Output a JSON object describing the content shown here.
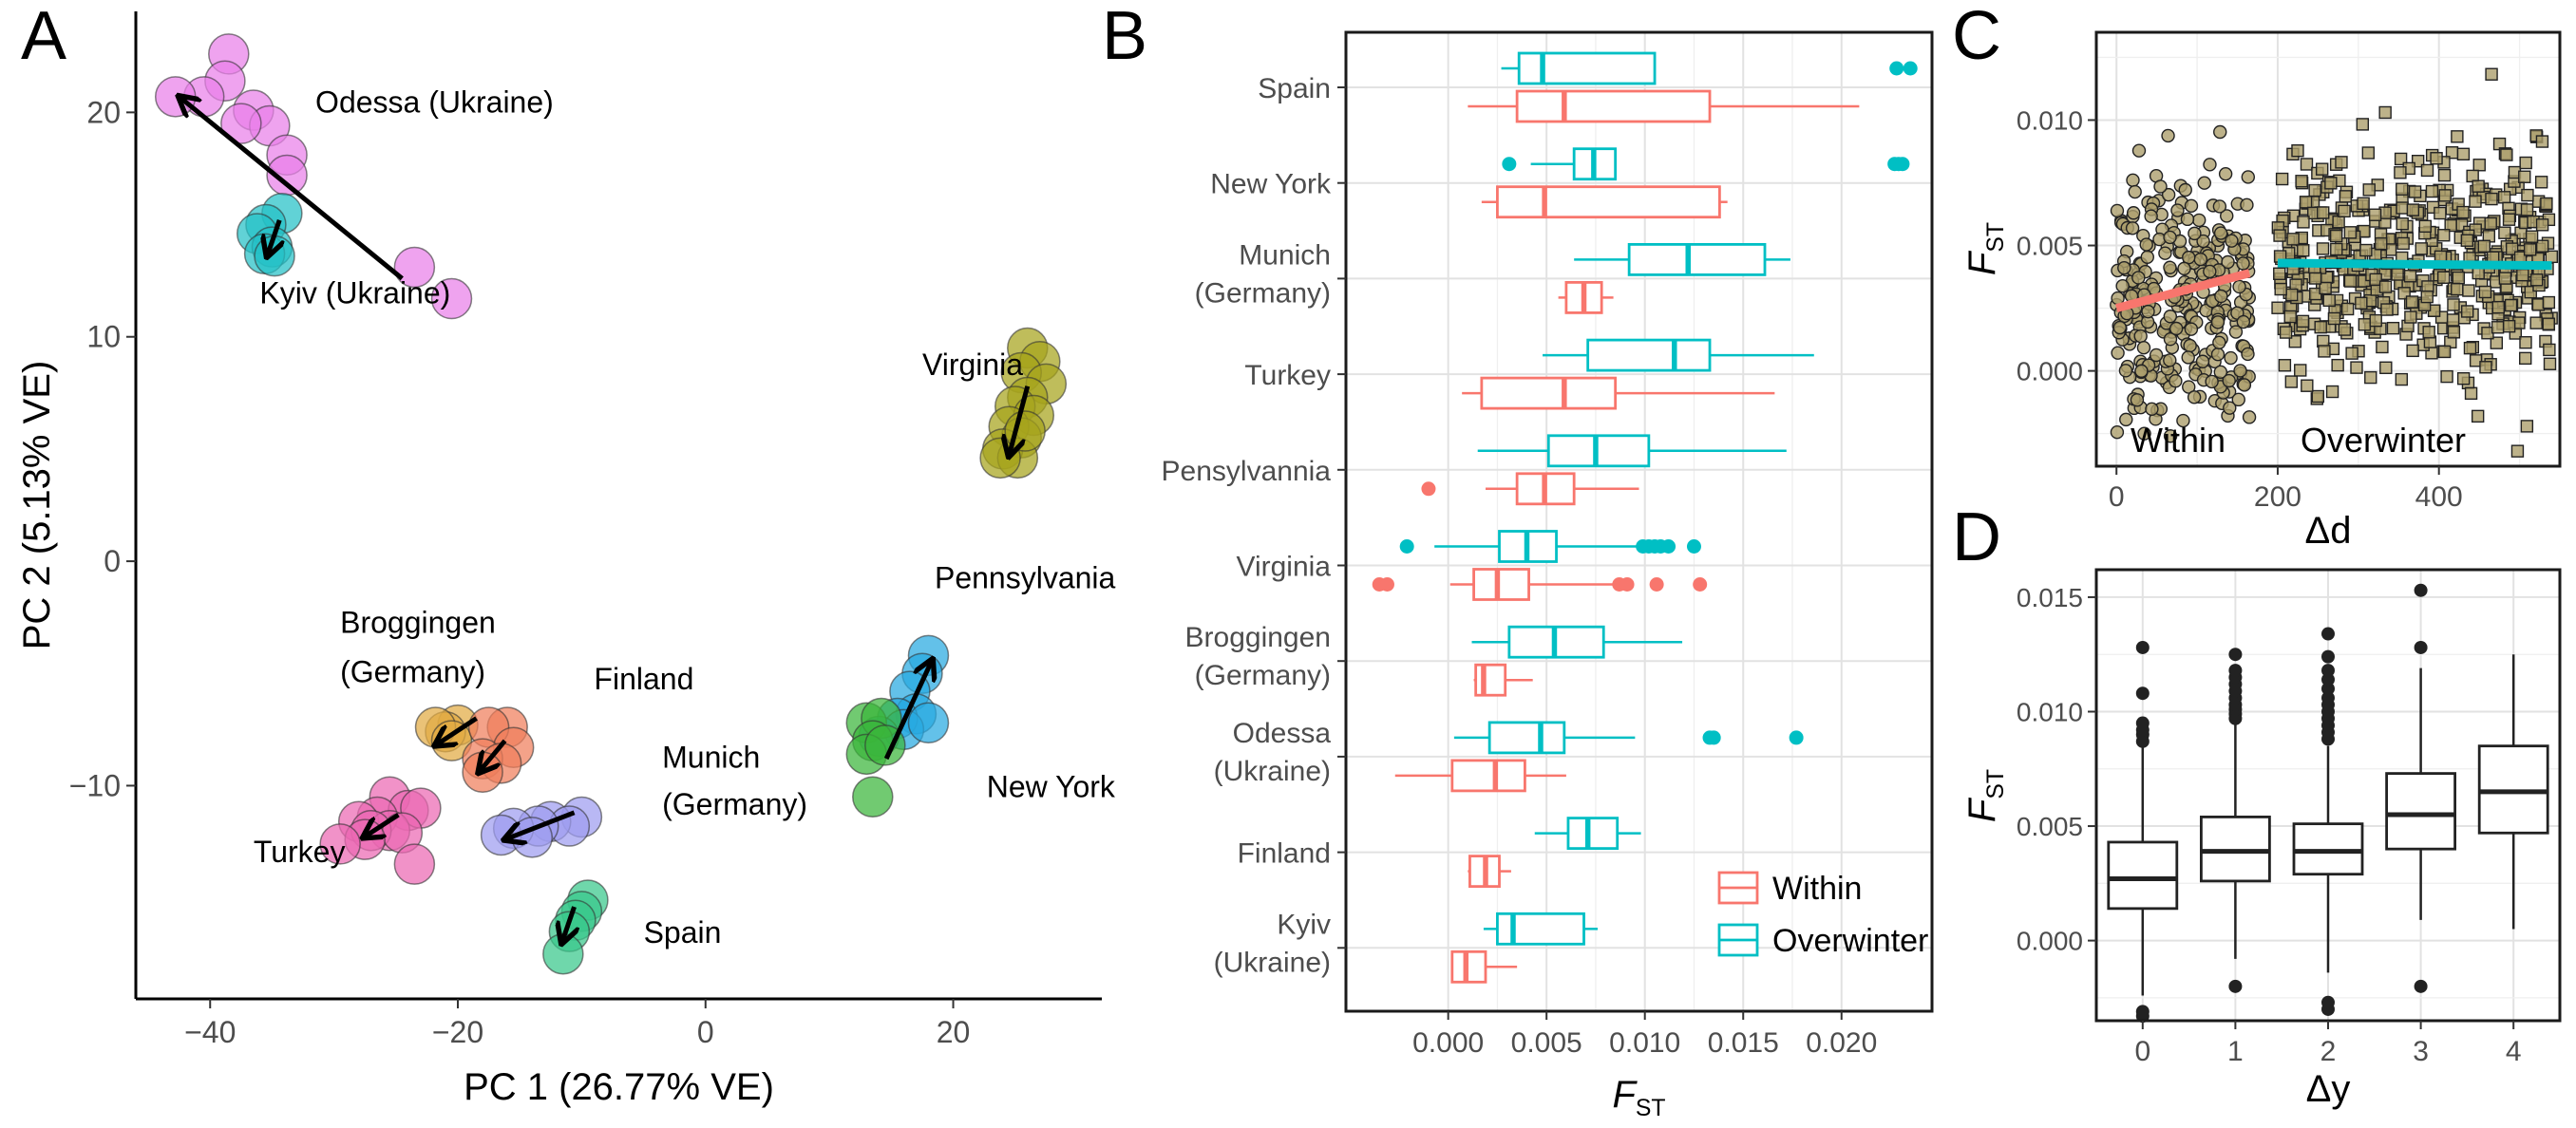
{
  "panels": {
    "A": "A",
    "B": "B",
    "C": "C",
    "D": "D"
  },
  "chart_data": [
    {
      "id": "A",
      "type": "scatter",
      "xlabel": "PC 1 (26.77% VE)",
      "ylabel": "PC 2 (5.13% VE)",
      "xlim": [
        -46,
        32
      ],
      "ylim": [
        -19.5,
        24.5
      ],
      "xticks": [
        -40,
        -20,
        0,
        20
      ],
      "yticks": [
        -10,
        0,
        10,
        20
      ],
      "groups": [
        {
          "name": "Odessa (Ukraine)",
          "color": "#e97fe9",
          "points": [
            [
              -38.5,
              22.6
            ],
            [
              -38.8,
              21.4
            ],
            [
              -40.5,
              20.7
            ],
            [
              -42.8,
              20.7
            ],
            [
              -36.5,
              20.1
            ],
            [
              -35.2,
              19.4
            ],
            [
              -37.5,
              19.5
            ],
            [
              -33.8,
              18.1
            ],
            [
              -33.8,
              17.2
            ],
            [
              -23.5,
              13.1
            ],
            [
              -20.5,
              11.7
            ]
          ],
          "arrow": [
            [
              -24.5,
              12.6
            ],
            [
              -42.5,
              20.7
            ]
          ]
        },
        {
          "name": "Kyiv (Ukraine)",
          "color": "#24c1c6",
          "points": [
            [
              -34.2,
              15.5
            ],
            [
              -35.5,
              15.0
            ],
            [
              -36.2,
              14.6
            ],
            [
              -35.0,
              14.0
            ],
            [
              -35.6,
              13.7
            ],
            [
              -34.8,
              13.6
            ]
          ],
          "arrow": [
            [
              -34.4,
              15.2
            ],
            [
              -35.4,
              13.6
            ]
          ]
        },
        {
          "name": "Virginia",
          "color": "#a6a41c",
          "points": [
            [
              26.0,
              9.5
            ],
            [
              27.0,
              8.9
            ],
            [
              25.5,
              8.4
            ],
            [
              27.5,
              7.9
            ],
            [
              26.0,
              7.3
            ],
            [
              25.0,
              6.9
            ],
            [
              26.5,
              6.5
            ],
            [
              24.5,
              6.0
            ],
            [
              25.5,
              5.5
            ],
            [
              24.0,
              5.0
            ],
            [
              25.2,
              4.6
            ],
            [
              23.8,
              4.6
            ],
            [
              25.8,
              5.8
            ]
          ],
          "arrow": [
            [
              26.0,
              7.8
            ],
            [
              24.5,
              4.7
            ]
          ]
        },
        {
          "name": "Pennsylvania",
          "color": "#27a9e1",
          "points": [
            [
              18.0,
              -4.2
            ],
            [
              17.5,
              -5.0
            ],
            [
              16.5,
              -5.8
            ],
            [
              17.0,
              -6.8
            ],
            [
              15.5,
              -7.0
            ],
            [
              16.0,
              -7.5
            ],
            [
              18.0,
              -7.2
            ],
            [
              14.0,
              -7.8
            ]
          ],
          "arrow": [
            [
              14.6,
              -8.8
            ],
            [
              18.3,
              -4.4
            ]
          ]
        },
        {
          "name": "New York",
          "color": "#3ab53a",
          "points": [
            [
              13.0,
              -7.2
            ],
            [
              14.2,
              -7.0
            ],
            [
              13.5,
              -8.0
            ],
            [
              13.0,
              -8.6
            ],
            [
              14.5,
              -8.2
            ],
            [
              13.5,
              -10.5
            ]
          ],
          "arrow": null
        },
        {
          "name": "Broggingen (Germany)",
          "color": "#e2ab43",
          "points": [
            [
              -20.0,
              -7.3
            ],
            [
              -21.0,
              -7.6
            ],
            [
              -21.8,
              -7.4
            ],
            [
              -20.5,
              -8.0
            ]
          ],
          "arrow": [
            [
              -18.5,
              -7.0
            ],
            [
              -21.8,
              -8.2
            ]
          ]
        },
        {
          "name": "Finland",
          "color": "#f07e5b",
          "points": [
            [
              -16.0,
              -7.4
            ],
            [
              -17.5,
              -7.4
            ],
            [
              -15.5,
              -8.3
            ],
            [
              -18.0,
              -8.8
            ],
            [
              -16.5,
              -9.0
            ],
            [
              -18.0,
              -9.4
            ]
          ],
          "arrow": [
            [
              -16.2,
              -8.0
            ],
            [
              -18.3,
              -9.4
            ]
          ]
        },
        {
          "name": "Munich (Germany)",
          "color": "#9e9cf0",
          "points": [
            [
              -10.0,
              -11.4
            ],
            [
              -12.5,
              -11.6
            ],
            [
              -11.0,
              -11.8
            ],
            [
              -13.5,
              -11.8
            ],
            [
              -15.5,
              -11.9
            ],
            [
              -16.5,
              -12.2
            ],
            [
              -14.0,
              -12.3
            ]
          ],
          "arrow": [
            [
              -10.6,
              -11.2
            ],
            [
              -16.2,
              -12.4
            ]
          ]
        },
        {
          "name": "Turkey",
          "color": "#ec68b3",
          "points": [
            [
              -25.5,
              -10.5
            ],
            [
              -24.0,
              -11.1
            ],
            [
              -23.0,
              -11.0
            ],
            [
              -26.5,
              -11.4
            ],
            [
              -28.0,
              -11.6
            ],
            [
              -25.5,
              -12.0
            ],
            [
              -27.0,
              -12.0
            ],
            [
              -24.5,
              -12.1
            ],
            [
              -27.5,
              -12.4
            ],
            [
              -29.5,
              -12.6
            ],
            [
              -23.5,
              -13.5
            ]
          ],
          "arrow": [
            [
              -24.8,
              -11.3
            ],
            [
              -27.6,
              -12.3
            ]
          ]
        },
        {
          "name": "Spain",
          "color": "#38c78a",
          "points": [
            [
              -9.5,
              -15.1
            ],
            [
              -10.0,
              -15.6
            ],
            [
              -10.5,
              -16.0
            ],
            [
              -11.0,
              -16.5
            ],
            [
              -11.5,
              -17.5
            ]
          ],
          "arrow": [
            [
              -10.6,
              -15.4
            ],
            [
              -11.6,
              -17.0
            ]
          ]
        }
      ],
      "labels": [
        {
          "text": "Odessa (Ukraine)",
          "x": -31.5,
          "y": 20.0
        },
        {
          "text": "Kyiv (Ukraine)",
          "x": -36.0,
          "y": 11.5
        },
        {
          "text": "Virginia",
          "x": 17.5,
          "y": 8.3
        },
        {
          "text": "Pennsylvania",
          "x": 18.5,
          "y": -1.2
        },
        {
          "text": "New York",
          "x": 22.7,
          "y": -10.5
        },
        {
          "text": "Broggingen",
          "x": -29.5,
          "y": -3.2
        },
        {
          "text": "(Germany)",
          "x": -29.5,
          "y": -5.4
        },
        {
          "text": "Finland",
          "x": -9.0,
          "y": -5.7
        },
        {
          "text": "Munich",
          "x": -3.5,
          "y": -9.2
        },
        {
          "text": "(Germany)",
          "x": -3.5,
          "y": -11.3
        },
        {
          "text": "Turkey",
          "x": -36.5,
          "y": -13.4
        },
        {
          "text": "Spain",
          "x": -5.0,
          "y": -17.0
        }
      ]
    },
    {
      "id": "B",
      "type": "boxplot",
      "xlabel": "F",
      "xlabel_sub": "ST",
      "xlim": [
        -0.0052,
        0.0246
      ],
      "xticks": [
        "0.000",
        "0.005",
        "0.010",
        "0.015",
        "0.020"
      ],
      "xtick_values": [
        0,
        0.005,
        0.01,
        0.015,
        0.02
      ],
      "categories": [
        "Spain",
        "New York",
        "Munich (Germany)",
        "Turkey",
        "Pensylvannia",
        "Virginia",
        "Broggingen (Germany)",
        "Odessa (Ukraine)",
        "Finland",
        "Kyiv (Ukraine)"
      ],
      "category_lines": [
        [
          "Spain"
        ],
        [
          "New York"
        ],
        [
          "Munich",
          "(Germany)"
        ],
        [
          "Turkey"
        ],
        [
          "Pensylvannia"
        ],
        [
          "Virginia"
        ],
        [
          "Broggingen",
          "(Germany)"
        ],
        [
          "Odessa",
          "(Ukraine)"
        ],
        [
          "Finland"
        ],
        [
          "Kyiv",
          "(Ukraine)"
        ]
      ],
      "legend": {
        "position": "bottom-right",
        "entries": [
          "Within",
          "Overwinter"
        ]
      },
      "series": [
        {
          "name": "Within",
          "color": "#f8766d",
          "boxes": [
            {
              "min": 0.001,
              "q1": 0.0035,
              "median": 0.0059,
              "q3": 0.0133,
              "max": 0.0209,
              "outliers": []
            },
            {
              "min": 0.0017,
              "q1": 0.0025,
              "median": 0.0049,
              "q3": 0.0138,
              "max": 0.0142,
              "outliers": []
            },
            {
              "min": 0.0056,
              "q1": 0.006,
              "median": 0.0069,
              "q3": 0.0078,
              "max": 0.0084,
              "outliers": []
            },
            {
              "min": 0.0007,
              "q1": 0.0017,
              "median": 0.0059,
              "q3": 0.0085,
              "max": 0.0166,
              "outliers": []
            },
            {
              "min": 0.0019,
              "q1": 0.0035,
              "median": 0.0049,
              "q3": 0.0064,
              "max": 0.0097,
              "outliers": [
                -0.001
              ]
            },
            {
              "min": 0.0001,
              "q1": 0.0013,
              "median": 0.0025,
              "q3": 0.0041,
              "max": 0.0087,
              "outliers": [
                -0.0035,
                -0.0031,
                0.0087,
                0.0091,
                0.0106,
                0.0128
              ]
            },
            {
              "min": 0.0013,
              "q1": 0.0014,
              "median": 0.0018,
              "q3": 0.0029,
              "max": 0.0043,
              "outliers": []
            },
            {
              "min": -0.0027,
              "q1": 0.0002,
              "median": 0.0024,
              "q3": 0.0039,
              "max": 0.006,
              "outliers": []
            },
            {
              "min": 0.001,
              "q1": 0.0011,
              "median": 0.0019,
              "q3": 0.0026,
              "max": 0.0032,
              "outliers": []
            },
            {
              "min": 0.0002,
              "q1": 0.0002,
              "median": 0.0009,
              "q3": 0.0019,
              "max": 0.0035,
              "outliers": []
            }
          ]
        },
        {
          "name": "Overwinter",
          "color": "#00bfc4",
          "boxes": [
            {
              "min": 0.0027,
              "q1": 0.0036,
              "median": 0.0048,
              "q3": 0.0105,
              "max": 0.0105,
              "outliers": [
                0.0228,
                0.0235
              ]
            },
            {
              "min": 0.0042,
              "q1": 0.0064,
              "median": 0.0074,
              "q3": 0.0085,
              "max": 0.0085,
              "outliers": [
                0.0031,
                0.0227,
                0.0229,
                0.0231
              ]
            },
            {
              "min": 0.0064,
              "q1": 0.0092,
              "median": 0.0122,
              "q3": 0.0161,
              "max": 0.0174,
              "outliers": []
            },
            {
              "min": 0.0048,
              "q1": 0.0071,
              "median": 0.0115,
              "q3": 0.0133,
              "max": 0.0186,
              "outliers": []
            },
            {
              "min": 0.0015,
              "q1": 0.0051,
              "median": 0.0075,
              "q3": 0.0102,
              "max": 0.0172,
              "outliers": []
            },
            {
              "min": -0.0007,
              "q1": 0.0026,
              "median": 0.004,
              "q3": 0.0055,
              "max": 0.0098,
              "outliers": [
                -0.0021,
                0.0099,
                0.0102,
                0.0105,
                0.0108,
                0.0112,
                0.0125
              ]
            },
            {
              "min": 0.0012,
              "q1": 0.0031,
              "median": 0.0054,
              "q3": 0.0079,
              "max": 0.0119,
              "outliers": []
            },
            {
              "min": 0.0003,
              "q1": 0.0021,
              "median": 0.0047,
              "q3": 0.0059,
              "max": 0.0095,
              "outliers": [
                0.0133,
                0.0135,
                0.0177
              ]
            },
            {
              "min": 0.0044,
              "q1": 0.0061,
              "median": 0.0071,
              "q3": 0.0086,
              "max": 0.0098,
              "outliers": []
            },
            {
              "min": 0.0018,
              "q1": 0.0025,
              "median": 0.0033,
              "q3": 0.0069,
              "max": 0.0076,
              "outliers": []
            }
          ]
        }
      ]
    },
    {
      "id": "C",
      "type": "scatter",
      "xlabel": "Δd",
      "ylabel": "F",
      "ylabel_sub": "ST",
      "xlim": [
        -25,
        550
      ],
      "ylim": [
        -0.0038,
        0.0135
      ],
      "xticks": [
        0,
        200,
        400
      ],
      "yticks": [
        "0.000",
        "0.005",
        "0.010"
      ],
      "ytick_values": [
        0,
        0.005,
        0.01
      ],
      "annotations": [
        "Within",
        "Overwinter"
      ],
      "series": [
        {
          "name": "Within",
          "marker": "circle",
          "fill": "#ad9f6d",
          "n": 300,
          "x_range": [
            0,
            165
          ],
          "fit": {
            "color": "#f8766d",
            "x": [
              0,
              165
            ],
            "y": [
              0.0025,
              0.0039
            ]
          }
        },
        {
          "name": "Overwinter",
          "marker": "square",
          "fill": "#ad9f6d",
          "n": 520,
          "x_range": [
            200,
            540
          ],
          "fit": {
            "color": "#00bfc4",
            "x": [
              200,
              540
            ],
            "y": [
              0.0043,
              0.0042
            ]
          }
        }
      ]
    },
    {
      "id": "D",
      "type": "boxplot",
      "xlabel": "Δy",
      "ylabel": "F",
      "ylabel_sub": "ST",
      "ylim": [
        -0.0035,
        0.0162
      ],
      "yticks": [
        "0.000",
        "0.005",
        "0.010",
        "0.015"
      ],
      "ytick_values": [
        0,
        0.005,
        0.01,
        0.015
      ],
      "categories": [
        "0",
        "1",
        "2",
        "3",
        "4"
      ],
      "boxes": [
        {
          "min": -0.0024,
          "q1": 0.0014,
          "median": 0.0027,
          "q3": 0.0043,
          "max": 0.0085,
          "outliers": [
            -0.0033,
            -0.0031,
            0.0087,
            0.009,
            0.0092,
            0.0095,
            0.0108,
            0.0128
          ]
        },
        {
          "min": -0.0008,
          "q1": 0.0026,
          "median": 0.0039,
          "q3": 0.0054,
          "max": 0.0095,
          "outliers": [
            -0.002,
            0.0097,
            0.0099,
            0.0101,
            0.0103,
            0.0106,
            0.0109,
            0.0112,
            0.0115,
            0.0118,
            0.0125
          ]
        },
        {
          "min": -0.0014,
          "q1": 0.0029,
          "median": 0.0039,
          "q3": 0.0051,
          "max": 0.0085,
          "outliers": [
            -0.003,
            -0.0027,
            0.0088,
            0.0091,
            0.0094,
            0.0097,
            0.01,
            0.0103,
            0.0106,
            0.011,
            0.0114,
            0.0118,
            0.0124,
            0.0134
          ]
        },
        {
          "min": 0.0009,
          "q1": 0.004,
          "median": 0.0055,
          "q3": 0.0073,
          "max": 0.0119,
          "outliers": [
            -0.002,
            0.0128,
            0.0153
          ]
        },
        {
          "min": 0.0005,
          "q1": 0.0047,
          "median": 0.0065,
          "q3": 0.0085,
          "max": 0.0125,
          "outliers": []
        }
      ]
    }
  ]
}
